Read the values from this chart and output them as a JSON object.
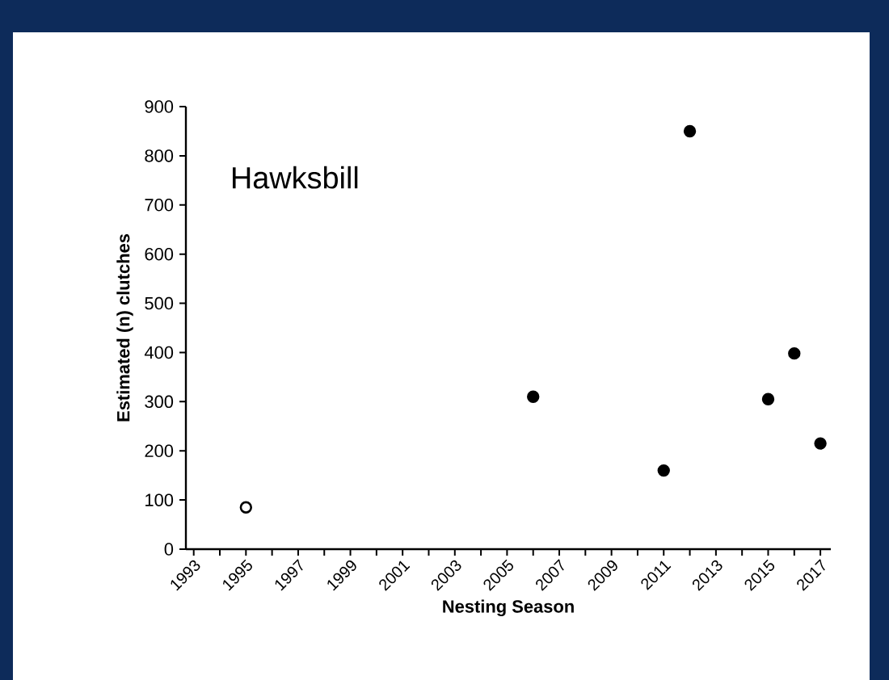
{
  "chart_data": {
    "type": "scatter",
    "xlabel": "Nesting Season",
    "ylabel": "Estimated (n) clutches",
    "annotations": [
      "Hawksbill"
    ],
    "series": [
      {
        "color": "#ffffff",
        "x": [
          1995
        ],
        "values": [
          85
        ]
      },
      {
        "color": "#000000",
        "x": [
          2006,
          2011,
          2012,
          2015,
          2016,
          2017
        ],
        "values": [
          310,
          160,
          850,
          305,
          398,
          215
        ]
      }
    ],
    "xlim": [
      1992.7,
      2017.4
    ],
    "xticks": [
      1993,
      1995,
      1997,
      1999,
      2001,
      2003,
      2005,
      2007,
      2009,
      2011,
      2013,
      2015,
      2017
    ],
    "ylim": [
      0,
      900
    ],
    "yticks": [
      0,
      100,
      200,
      300,
      400,
      500,
      600,
      700,
      800,
      900
    ],
    "marker": "circle"
  }
}
